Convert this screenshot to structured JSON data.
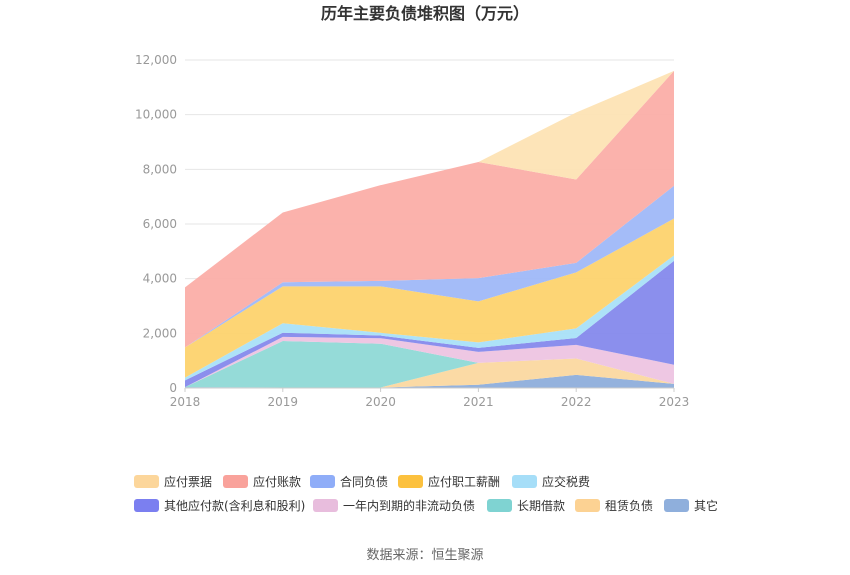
{
  "chart_data": {
    "type": "area",
    "stacked": true,
    "title": "历年主要负债堆积图（万元）",
    "source": "数据来源：恒生聚源",
    "categories": [
      "2018",
      "2019",
      "2020",
      "2021",
      "2022",
      "2023"
    ],
    "ylim": [
      0,
      12000
    ],
    "yticks": [
      "0",
      "2,000",
      "4,000",
      "6,000",
      "8,000",
      "10,000",
      "12,000"
    ],
    "grid": true,
    "legend_position": "bottom",
    "series": [
      {
        "name": "其它",
        "color": "#8eaedb",
        "values": [
          30,
          20,
          20,
          120,
          480,
          150
        ]
      },
      {
        "name": "租赁负债",
        "color": "#fbd8a0",
        "values": [
          0,
          0,
          0,
          800,
          600,
          0
        ]
      },
      {
        "name": "长期借款",
        "color": "#8fd9d6",
        "values": [
          0,
          1700,
          1600,
          0,
          0,
          0
        ]
      },
      {
        "name": "一年内到期的非流动负债",
        "color": "#edc4e1",
        "values": [
          0,
          150,
          200,
          400,
          500,
          700
        ]
      },
      {
        "name": "其他应付款(含利息和股利)",
        "color": "#8589ec",
        "values": [
          250,
          150,
          100,
          150,
          250,
          3800
        ]
      },
      {
        "name": "应交税费",
        "color": "#a9e0f8",
        "values": [
          100,
          350,
          100,
          200,
          350,
          200
        ]
      },
      {
        "name": "应付职工薪酬",
        "color": "#fdd36e",
        "values": [
          1100,
          1350,
          1700,
          1500,
          2050,
          1350
        ]
      },
      {
        "name": "合同负债",
        "color": "#9fb8f8",
        "values": [
          0,
          150,
          200,
          850,
          350,
          1200
        ]
      },
      {
        "name": "应付账款",
        "color": "#fbaea8",
        "values": [
          2200,
          2550,
          3500,
          4250,
          3050,
          4200
        ]
      },
      {
        "name": "应付票据",
        "color": "#fde3b4",
        "values": [
          0,
          0,
          0,
          0,
          2450,
          0
        ]
      }
    ]
  },
  "legend_rows": [
    [
      {
        "name": "应付票据",
        "color": "#fcd69b"
      },
      {
        "name": "应付账款",
        "color": "#f9a29b"
      },
      {
        "name": "合同负债",
        "color": "#8fadf8"
      },
      {
        "name": "应付职工薪酬",
        "color": "#fcc13e"
      },
      {
        "name": "应交税费",
        "color": "#a6def8"
      }
    ],
    [
      {
        "name": "其他应付款(含利息和股利)",
        "color": "#7b7ff0"
      },
      {
        "name": "一年内到期的非流动负债",
        "color": "#e8bddd"
      },
      {
        "name": "长期借款",
        "color": "#7fd3d2"
      },
      {
        "name": "租赁负债",
        "color": "#fcd293"
      },
      {
        "name": "其它",
        "color": "#8fafdc"
      }
    ]
  ]
}
